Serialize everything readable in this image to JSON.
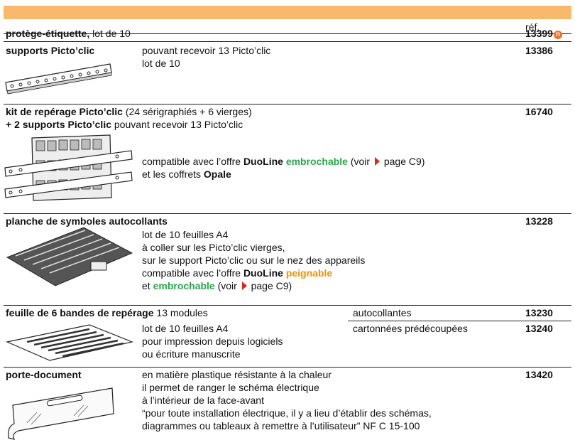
{
  "header": {
    "ref_label": "réf."
  },
  "rows": [
    {
      "title": [
        [
          "protège-étiquette,",
          " lot de 10"
        ]
      ],
      "ref": "13399",
      "badge": "n"
    },
    {
      "title": [
        [
          "supports Picto’clic"
        ]
      ],
      "description": [
        [
          "pouvant recevoir 13 Picto’clic"
        ],
        [
          "lot de 10"
        ]
      ],
      "ref": "13386"
    },
    {
      "title": [
        [
          "kit de repérage Picto’clic",
          " (24 sérigraphiés + 6 vierges)"
        ],
        [
          "+ 2 supports Picto’clic",
          " pouvant recevoir 13 Picto’clic"
        ]
      ],
      "description": [
        [
          "compatible avec l’offre ",
          "DuoLine",
          " embrochable",
          " (voir ",
          " page C9)"
        ],
        [
          "et les coffrets ",
          "Opale"
        ]
      ],
      "ref": "16740"
    },
    {
      "title": [
        [
          "planche de symboles autocollants"
        ]
      ],
      "description": [
        [
          "lot de 10 feuilles A4"
        ],
        [
          "à coller sur les Picto’clic vierges,"
        ],
        [
          "sur le support Picto’clic ou sur le nez des appareils"
        ],
        [
          "compatible avec l’offre ",
          "DuoLine",
          " peignable"
        ],
        [
          "et ",
          "embrochable",
          " (voir ",
          " page C9)"
        ]
      ],
      "ref": "13228"
    },
    {
      "title": [
        [
          "feuille de 6 bandes de repérage",
          " 13 modules"
        ]
      ],
      "variants": [
        {
          "label": "autocollantes",
          "ref": "13230"
        },
        {
          "label": "cartonnées prédécoupées",
          "ref": "13240"
        }
      ],
      "description": [
        [
          "lot de 10 feuilles A4"
        ],
        [
          "pour impression depuis logiciels"
        ],
        [
          "ou écriture manuscrite"
        ]
      ]
    },
    {
      "title": [
        [
          "porte-document"
        ]
      ],
      "description": [
        [
          "en matière plastique résistante à la chaleur"
        ],
        [
          "il permet de ranger le schéma électrique"
        ],
        [
          "à l’intérieur de la face-avant"
        ],
        [
          "“pour toute installation électrique, il y a lieu d’établir des schémas,"
        ],
        [
          "diagrammes ou tableaux à remettre à l’utilisateur” NF C 15-100"
        ]
      ],
      "ref": "13420"
    }
  ]
}
